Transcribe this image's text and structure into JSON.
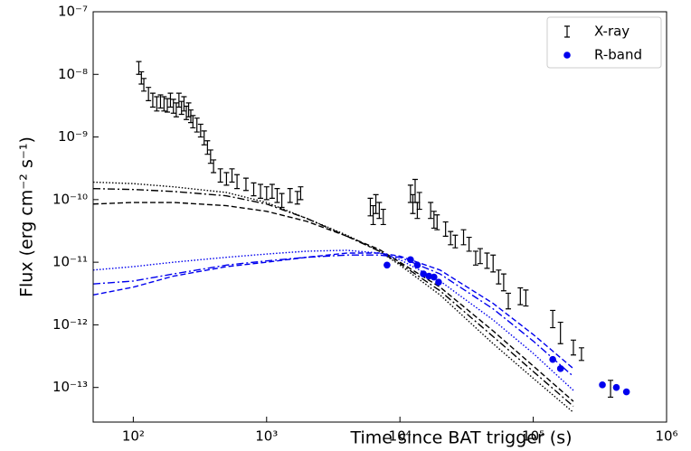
{
  "chart_data": {
    "type": "scatter",
    "log_x": true,
    "log_y": true,
    "xlabel": "Time since BAT trigger (s)",
    "ylabel": "Flux (erg cm⁻² s⁻¹)",
    "xlim": [
      50,
      1000000
    ],
    "ylim": [
      2.8e-14,
      1e-07
    ],
    "xticks": [
      {
        "value": 100,
        "label": "10²"
      },
      {
        "value": 1000,
        "label": "10³"
      },
      {
        "value": 10000,
        "label": "10⁴"
      },
      {
        "value": 100000,
        "label": "10⁵"
      },
      {
        "value": 1000000,
        "label": "10⁶"
      }
    ],
    "yticks": [
      {
        "value": 1e-13,
        "label": "10⁻¹³"
      },
      {
        "value": 1e-12,
        "label": "10⁻¹²"
      },
      {
        "value": 1e-11,
        "label": "10⁻¹¹"
      },
      {
        "value": 1e-10,
        "label": "10⁻¹⁰"
      },
      {
        "value": 1e-09,
        "label": "10⁻⁹"
      },
      {
        "value": 1e-08,
        "label": "10⁻⁸"
      },
      {
        "value": 1e-07,
        "label": "10⁻⁷"
      }
    ],
    "legend": "upper right",
    "series": [
      {
        "name": "X-ray",
        "color": "#000000",
        "marker": "errorbar",
        "x": [
          110,
          115,
          120,
          130,
          140,
          150,
          160,
          170,
          180,
          190,
          200,
          210,
          220,
          230,
          240,
          250,
          260,
          270,
          280,
          300,
          320,
          340,
          360,
          380,
          400,
          450,
          500,
          550,
          600,
          700,
          800,
          900,
          1000,
          1100,
          1200,
          1300,
          1500,
          1700,
          1800,
          6000,
          6300,
          6600,
          7000,
          7500,
          12000,
          12500,
          13000,
          13500,
          14000,
          17000,
          18000,
          19000,
          22000,
          24000,
          26000,
          30000,
          33000,
          37000,
          40000,
          45000,
          50000,
          55000,
          60000,
          65000,
          80000,
          88000,
          140000,
          160000,
          200000,
          230000,
          380000
        ],
        "values": [
          1.3e-08,
          9e-09,
          7e-09,
          5e-09,
          4e-09,
          3.5e-09,
          3.8e-09,
          3.5e-09,
          3.3e-09,
          4e-09,
          3.2e-09,
          2.8e-09,
          4e-09,
          3e-09,
          3.5e-09,
          2.5e-09,
          2.8e-09,
          2.2e-09,
          1.8e-09,
          1.6e-09,
          1.3e-09,
          1e-09,
          7e-10,
          5e-10,
          3.5e-10,
          2.5e-10,
          2.2e-10,
          2.5e-10,
          2e-10,
          1.8e-10,
          1.5e-10,
          1.4e-10,
          1.3e-10,
          1.4e-10,
          1.2e-10,
          1e-10,
          1.2e-10,
          1.1e-10,
          1.3e-10,
          8e-11,
          6e-11,
          9e-11,
          7e-11,
          5.5e-11,
          1.3e-10,
          9e-11,
          1.5e-10,
          7e-11,
          1e-10,
          7e-11,
          5e-11,
          4.5e-11,
          3.5e-11,
          2.5e-11,
          2.2e-11,
          2.6e-11,
          2e-11,
          1.2e-11,
          1.3e-11,
          1.1e-11,
          1e-11,
          6e-12,
          5e-12,
          2.5e-12,
          3e-12,
          2.8e-12,
          1.3e-12,
          8e-13,
          4.5e-13,
          3.5e-13,
          1e-13
        ],
        "errors": [
          3e-09,
          2e-09,
          1.6e-09,
          1.2e-09,
          1e-09,
          9e-10,
          9e-10,
          9e-10,
          8e-10,
          1e-09,
          8e-10,
          7e-10,
          1e-09,
          7e-10,
          9e-10,
          6e-10,
          7e-10,
          5e-10,
          4e-10,
          4e-10,
          3e-10,
          2.5e-10,
          1.7e-10,
          1.2e-10,
          8e-11,
          6e-11,
          5e-11,
          6e-11,
          5e-11,
          4e-11,
          3.5e-11,
          3.5e-11,
          3e-11,
          3.5e-11,
          3e-11,
          2.5e-11,
          3e-11,
          2.5e-11,
          3e-11,
          2.5e-11,
          2e-11,
          3e-11,
          2e-11,
          1.5e-11,
          4e-11,
          3e-11,
          6e-11,
          2e-11,
          3e-11,
          2e-11,
          1.5e-11,
          1.2e-11,
          9e-12,
          6e-12,
          5e-12,
          7e-12,
          5e-12,
          3e-12,
          3.5e-12,
          3e-12,
          3e-12,
          1.5e-12,
          1.5e-12,
          7e-13,
          9e-13,
          8e-13,
          4e-13,
          3e-13,
          1.2e-13,
          8e-14,
          3e-14
        ]
      },
      {
        "name": "R-band",
        "color": "#0000ee",
        "marker": "circle",
        "x": [
          8000,
          12000,
          13500,
          15000,
          16500,
          18000,
          19500,
          140000,
          160000,
          330000,
          420000,
          500000
        ],
        "values": [
          9e-12,
          1.1e-11,
          9e-12,
          6.5e-12,
          6e-12,
          5.8e-12,
          4.8e-12,
          2.8e-13,
          2e-13,
          1.1e-13,
          1e-13,
          8.5e-14
        ]
      }
    ],
    "model_x": [
      50,
      100,
      200,
      500,
      1000,
      2000,
      4000,
      7000,
      10000,
      20000,
      50000,
      100000,
      200000
    ],
    "lines": [
      {
        "color": "#000000",
        "dash": "dotted",
        "values": [
          1.9e-10,
          1.8e-10,
          1.6e-10,
          1.3e-10,
          9e-11,
          5e-11,
          2.7e-11,
          1.5e-11,
          9e-12,
          3e-12,
          5e-13,
          1.4e-13,
          4e-14
        ]
      },
      {
        "color": "#000000",
        "dash": "dashdot",
        "values": [
          1.5e-10,
          1.45e-10,
          1.35e-10,
          1.15e-10,
          8.5e-11,
          5e-11,
          2.6e-11,
          1.5e-11,
          9.5e-12,
          3.5e-12,
          6.5e-13,
          1.8e-13,
          5e-14
        ]
      },
      {
        "color": "#000000",
        "dash": "dashed",
        "values": [
          8.5e-11,
          9e-11,
          9e-11,
          8e-11,
          6.5e-11,
          4.5e-11,
          2.6e-11,
          1.6e-11,
          1e-11,
          4e-12,
          8e-13,
          2.2e-13,
          6e-14
        ]
      },
      {
        "color": "#0000ee",
        "dash": "dotted",
        "values": [
          7.5e-12,
          8.5e-12,
          1e-11,
          1.2e-11,
          1.35e-11,
          1.5e-11,
          1.55e-11,
          1.4e-11,
          1.1e-11,
          5e-12,
          1.2e-12,
          3.5e-13,
          9e-14
        ]
      },
      {
        "color": "#0000ee",
        "dash": "dashdot",
        "values": [
          4.5e-12,
          5e-12,
          6.5e-12,
          9e-12,
          1.05e-11,
          1.2e-11,
          1.3e-11,
          1.3e-11,
          1.2e-11,
          6.5e-12,
          1.8e-12,
          5.5e-13,
          1.5e-13
        ]
      },
      {
        "color": "#0000ee",
        "dash": "dashed",
        "values": [
          3e-12,
          4e-12,
          6e-12,
          8.5e-12,
          1e-11,
          1.2e-11,
          1.4e-11,
          1.4e-11,
          1.25e-11,
          7.5e-12,
          2.2e-12,
          7e-13,
          2e-13
        ]
      }
    ]
  }
}
